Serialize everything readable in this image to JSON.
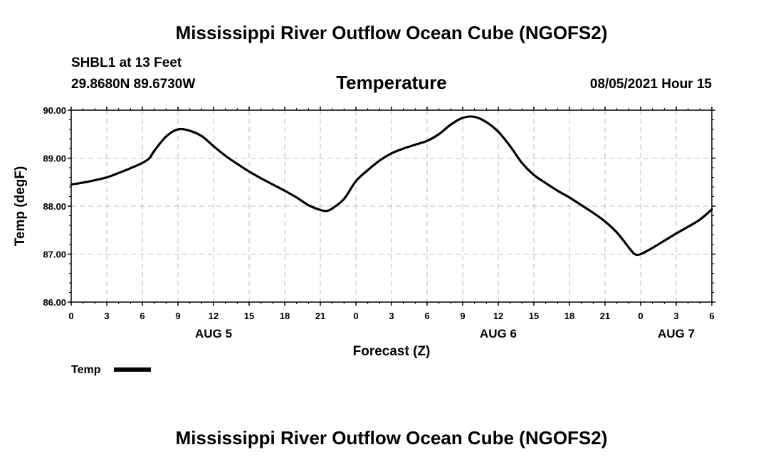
{
  "page": {
    "top_title": "Mississippi River Outflow Ocean Cube (NGOFS2)",
    "bottom_title": "Mississippi River Outflow Ocean Cube (NGOFS2)",
    "station": "SHBL1 at 13 Feet",
    "location": "29.8680N  89.6730W",
    "datetime": "08/05/2021 Hour 15"
  },
  "chart_data": {
    "type": "line",
    "title": "Temperature",
    "xlabel": "Forecast (Z)",
    "ylabel": "Temp (degF)",
    "xlim": [
      0,
      54
    ],
    "ylim": [
      86,
      90
    ],
    "yticks": [
      86,
      87,
      88,
      89,
      90
    ],
    "ytick_labels": [
      "86.00",
      "87.00",
      "88.00",
      "89.00",
      "90.00"
    ],
    "xticks": [
      0,
      3,
      6,
      9,
      12,
      15,
      18,
      21,
      24,
      27,
      30,
      33,
      36,
      39,
      42,
      45,
      48,
      51,
      54
    ],
    "xtick_labels": [
      "0",
      "3",
      "6",
      "9",
      "12",
      "15",
      "18",
      "21",
      "0",
      "3",
      "6",
      "9",
      "12",
      "15",
      "18",
      "21",
      "0",
      "3",
      "6"
    ],
    "day_labels": [
      {
        "x": 12,
        "label": "AUG 5"
      },
      {
        "x": 36,
        "label": "AUG 6"
      },
      {
        "x": 51,
        "label": "AUG 7"
      }
    ],
    "grid": true,
    "legend": [
      {
        "name": "Temp",
        "color": "#000000"
      }
    ],
    "legend_position": "bottom-left",
    "series": [
      {
        "name": "Temp",
        "color": "#000000",
        "x": [
          0,
          1,
          2,
          3,
          4,
          5,
          6,
          6.6,
          7,
          8,
          9,
          10,
          11,
          12,
          13,
          14,
          15,
          16,
          17,
          18,
          19,
          20,
          21,
          21.5,
          22,
          23,
          24,
          25,
          26,
          27,
          28,
          29,
          30,
          31,
          32,
          33,
          34,
          35,
          36,
          37,
          38,
          39,
          40,
          41,
          42,
          43,
          44,
          45,
          46,
          47,
          47.5,
          48,
          49,
          50,
          51,
          52,
          53,
          54
        ],
        "y": [
          88.45,
          88.49,
          88.54,
          88.6,
          88.69,
          88.79,
          88.9,
          89.0,
          89.15,
          89.45,
          89.6,
          89.57,
          89.46,
          89.25,
          89.05,
          88.88,
          88.72,
          88.58,
          88.45,
          88.32,
          88.18,
          88.02,
          87.92,
          87.9,
          87.95,
          88.15,
          88.52,
          88.75,
          88.95,
          89.1,
          89.2,
          89.28,
          89.36,
          89.5,
          89.7,
          89.84,
          89.86,
          89.75,
          89.55,
          89.25,
          88.9,
          88.65,
          88.48,
          88.32,
          88.18,
          88.02,
          87.86,
          87.68,
          87.45,
          87.14,
          87.0,
          87.0,
          87.13,
          87.28,
          87.43,
          87.57,
          87.72,
          87.93
        ]
      }
    ]
  }
}
